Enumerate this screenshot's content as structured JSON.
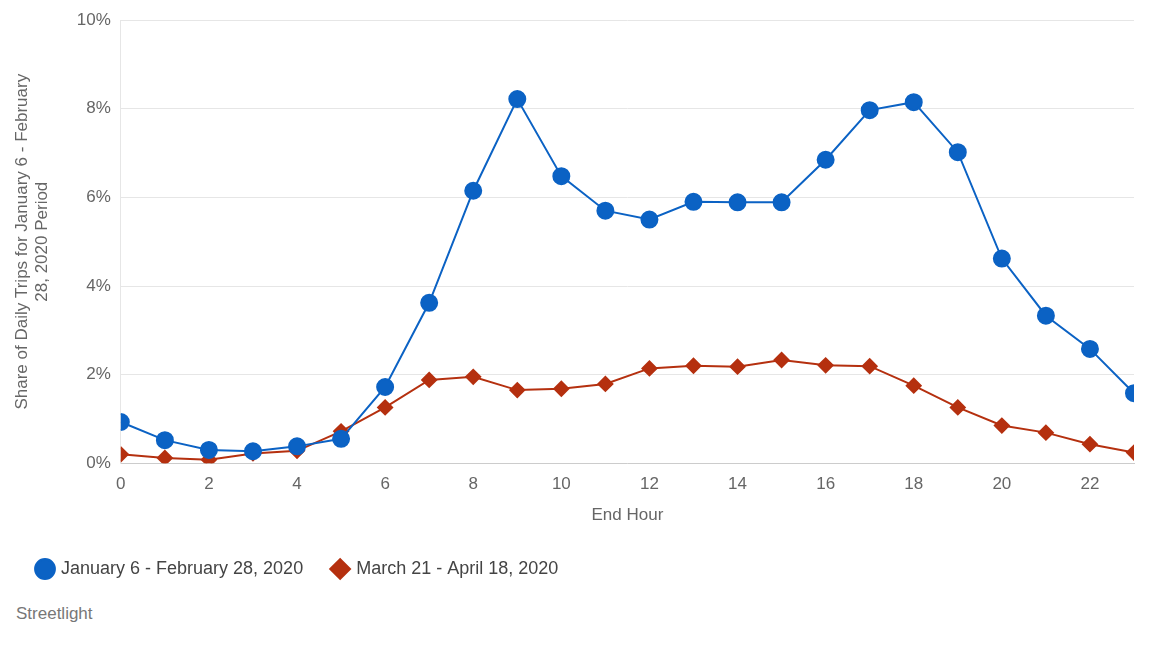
{
  "chart_data": {
    "type": "line",
    "x_label": "End Hour",
    "y_label": "Share of Daily Trips for January 6 - February 28, 2020 Period",
    "source": "Streetlight",
    "x": [
      0,
      1,
      2,
      3,
      4,
      5,
      6,
      7,
      8,
      9,
      10,
      11,
      12,
      13,
      14,
      15,
      16,
      17,
      18,
      19,
      20,
      21,
      22,
      23
    ],
    "series": [
      {
        "name": "January 6 - February 28, 2020",
        "color": "#0b62c4",
        "marker": "circle",
        "values": [
          0.93,
          0.52,
          0.3,
          0.27,
          0.38,
          0.55,
          1.72,
          3.62,
          6.15,
          8.22,
          6.48,
          5.7,
          5.5,
          5.9,
          5.89,
          5.89,
          6.85,
          7.97,
          8.15,
          7.02,
          4.62,
          3.33,
          2.58,
          1.58
        ]
      },
      {
        "name": "March 21 - April 18, 2020",
        "color": "#b5300f",
        "marker": "diamond",
        "values": [
          0.2,
          0.12,
          0.08,
          0.22,
          0.28,
          0.72,
          1.26,
          1.88,
          1.95,
          1.65,
          1.68,
          1.79,
          2.14,
          2.2,
          2.18,
          2.33,
          2.21,
          2.19,
          1.75,
          1.26,
          0.85,
          0.69,
          0.43,
          0.24
        ]
      }
    ],
    "xlim": [
      0,
      23
    ],
    "xticks": [
      0,
      2,
      4,
      6,
      8,
      10,
      12,
      14,
      16,
      18,
      20,
      22
    ],
    "ylim": [
      0,
      10
    ],
    "yticks": [
      {
        "value": 0,
        "label": "0%"
      },
      {
        "value": 2,
        "label": "2%"
      },
      {
        "value": 4,
        "label": "4%"
      },
      {
        "value": 6,
        "label": "6%"
      },
      {
        "value": 8,
        "label": "8%"
      },
      {
        "value": 10,
        "label": "10%"
      }
    ],
    "grid": true,
    "legend": "bottom-left"
  }
}
